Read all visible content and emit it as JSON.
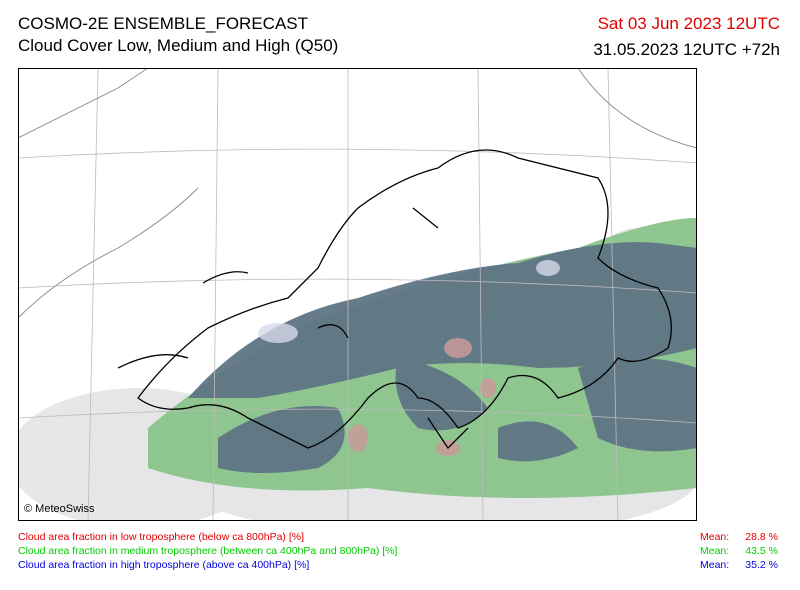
{
  "header": {
    "title": "COSMO-2E ENSEMBLE_FORECAST",
    "subtitle": "Cloud Cover Low, Medium and High (Q50)",
    "valid_time": "Sat 03 Jun 2023 12UTC",
    "run_time": "31.05.2023 12UTC +72h"
  },
  "map": {
    "credit": "© MeteoSwiss"
  },
  "legend": [
    {
      "text": "Cloud area fraction in low troposphere (below ca 800hPa) [%]",
      "mean_label": "Mean:",
      "mean": "28.8 %"
    },
    {
      "text": "Cloud area fraction in medium troposphere (between ca 400hPa and 800hPa) [%]",
      "mean_label": "Mean:",
      "mean": "43.5 %"
    },
    {
      "text": "Cloud area fraction in high troposphere (above ca 400hPa) [%]",
      "mean_label": "Mean:",
      "mean": "35.2 %"
    }
  ]
}
